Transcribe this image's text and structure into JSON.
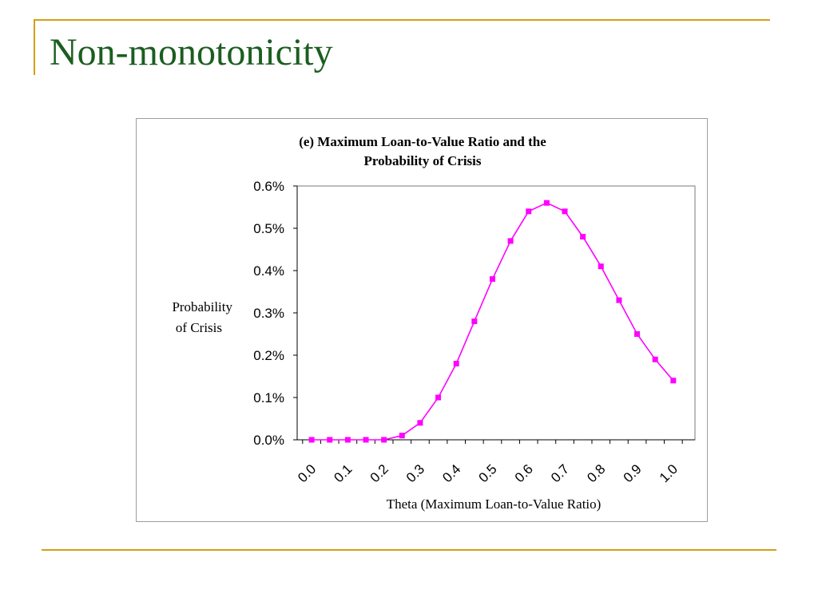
{
  "slide": {
    "title": "Non-monotonicity",
    "accent_color": "#d4a017",
    "title_color": "#1b5e20"
  },
  "chart_data": {
    "type": "line",
    "title_lines": [
      "(e) Maximum Loan-to-Value Ratio and the",
      "Probability of Crisis"
    ],
    "xlabel": "Theta (Maximum Loan-to-Value Ratio)",
    "ylabel_lines": [
      "Probability",
      "of Crisis"
    ],
    "ylim": [
      0,
      0.6
    ],
    "y_unit": "%",
    "y_ticks": [
      "0.0%",
      "0.1%",
      "0.2%",
      "0.3%",
      "0.4%",
      "0.5%",
      "0.6%"
    ],
    "x_ticks": [
      "0.0",
      "0.1",
      "0.2",
      "0.3",
      "0.4",
      "0.5",
      "0.6",
      "0.7",
      "0.8",
      "0.9",
      "1.0"
    ],
    "series_color": "#ff00ff",
    "grid": false,
    "series": [
      {
        "x": [
          0.0,
          0.05,
          0.1,
          0.15,
          0.2,
          0.25,
          0.3,
          0.35,
          0.4,
          0.45,
          0.5,
          0.55,
          0.6,
          0.65,
          0.7,
          0.75,
          0.8,
          0.85,
          0.9,
          0.95,
          1.0
        ],
        "values": [
          0.0,
          0.0,
          0.0,
          0.0,
          0.0,
          0.01,
          0.04,
          0.1,
          0.18,
          0.28,
          0.38,
          0.47,
          0.54,
          0.56,
          0.54,
          0.48,
          0.41,
          0.33,
          0.25,
          0.19,
          0.14
        ]
      }
    ]
  }
}
